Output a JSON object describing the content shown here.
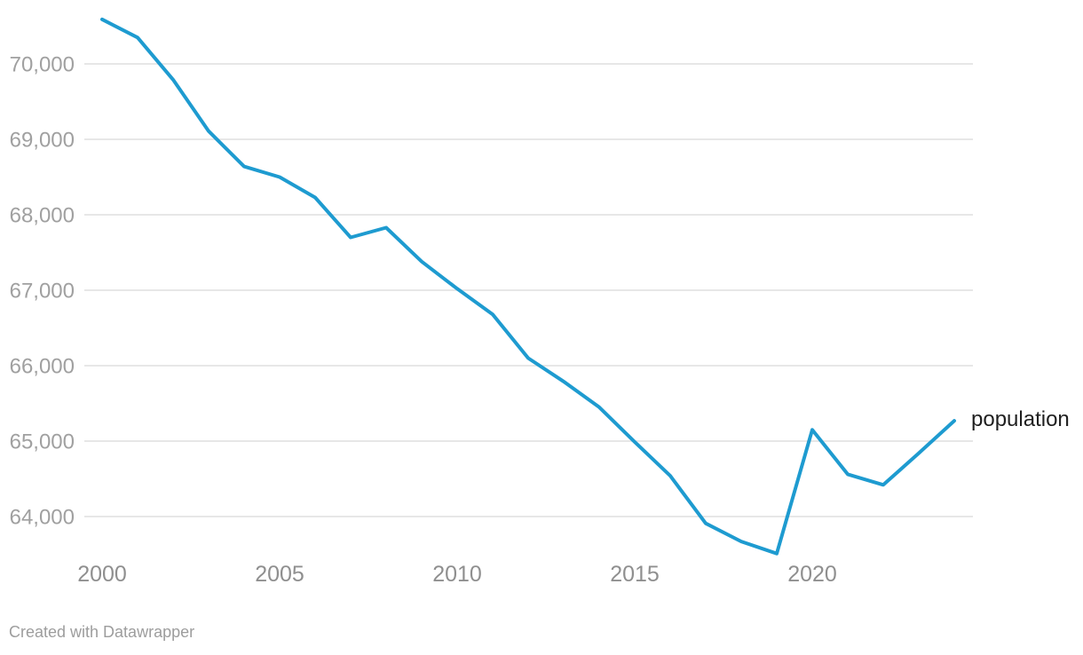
{
  "chart_data": {
    "type": "line",
    "title": "",
    "xlabel": "",
    "ylabel": "",
    "x": [
      2000,
      2001,
      2002,
      2003,
      2004,
      2005,
      2006,
      2007,
      2008,
      2009,
      2010,
      2011,
      2012,
      2013,
      2014,
      2015,
      2016,
      2017,
      2018,
      2019,
      2020,
      2021,
      2022,
      2023,
      2024
    ],
    "series": [
      {
        "name": "population",
        "values": [
          70590,
          70350,
          69790,
          69110,
          68640,
          68500,
          68230,
          67700,
          67830,
          67380,
          67020,
          66680,
          66100,
          65790,
          65450,
          64990,
          64540,
          63910,
          63670,
          63510,
          65150,
          64560,
          64420,
          64840,
          65270
        ]
      }
    ],
    "xlim": [
      2000,
      2024
    ],
    "ylim": [
      63400,
      70700
    ],
    "x_ticks": [
      {
        "value": 2000,
        "label": "2000"
      },
      {
        "value": 2005,
        "label": "2005"
      },
      {
        "value": 2010,
        "label": "2010"
      },
      {
        "value": 2015,
        "label": "2015"
      },
      {
        "value": 2020,
        "label": "2020"
      }
    ],
    "y_ticks": [
      {
        "value": 64000,
        "label": "64,000"
      },
      {
        "value": 65000,
        "label": "65,000"
      },
      {
        "value": 66000,
        "label": "66,000"
      },
      {
        "value": 67000,
        "label": "67,000"
      },
      {
        "value": 68000,
        "label": "68,000"
      },
      {
        "value": 69000,
        "label": "69,000"
      },
      {
        "value": 70000,
        "label": "70,000"
      }
    ],
    "grid": "horizontal",
    "legend_position": "direct-label-at-line-end"
  },
  "series_end_label": "population",
  "attribution": {
    "text": "Created with Datawrapper"
  },
  "colors": {
    "line": "#1e9bd0",
    "gridline": "#e7e7e7",
    "y_tick_text": "#a0a0a0",
    "x_tick_text": "#8f8f8f",
    "series_label_text": "#1f1f1f",
    "attribution_text": "#9d9d9d",
    "background": "#ffffff"
  }
}
